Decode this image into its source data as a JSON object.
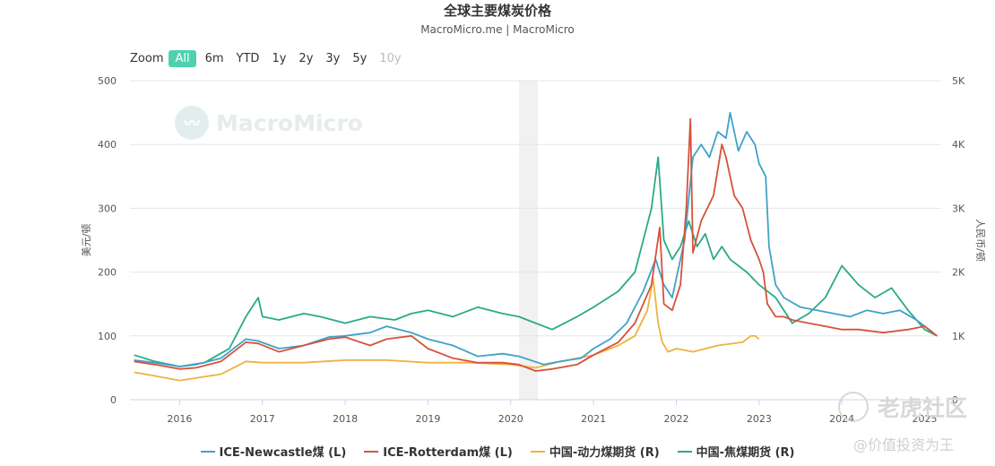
{
  "title": "全球主要煤炭价格",
  "subtitle": "MacroMicro.me | MacroMicro",
  "zoom": {
    "label": "Zoom",
    "buttons": [
      {
        "label": "All",
        "active": true,
        "disabled": false
      },
      {
        "label": "6m",
        "active": false,
        "disabled": false
      },
      {
        "label": "YTD",
        "active": false,
        "disabled": false
      },
      {
        "label": "1y",
        "active": false,
        "disabled": false
      },
      {
        "label": "2y",
        "active": false,
        "disabled": false
      },
      {
        "label": "3y",
        "active": false,
        "disabled": false
      },
      {
        "label": "5y",
        "active": false,
        "disabled": false
      },
      {
        "label": "10y",
        "active": false,
        "disabled": true
      }
    ]
  },
  "watermarks": {
    "brand": "MacroMicro",
    "tiger": "老虎社区",
    "handle": "@价值投资为王"
  },
  "chart_data": {
    "type": "line",
    "title": "全球主要煤炭价格",
    "subtitle": "MacroMicro.me | MacroMicro",
    "ylabel_left": "美元/顿",
    "ylabel_right": "人民币/顿",
    "ylim_left": [
      0,
      500
    ],
    "ylim_right": [
      0,
      5000
    ],
    "yticks_left": [
      "0",
      "100",
      "200",
      "300",
      "400",
      "500"
    ],
    "yticks_right": [
      "0",
      "1K",
      "2K",
      "3K",
      "4K",
      "5K"
    ],
    "xticks": [
      "2016",
      "2017",
      "2018",
      "2019",
      "2020",
      "2021",
      "2022",
      "2023",
      "2024",
      "2025"
    ],
    "xlim": [
      2015.4,
      2025.2
    ],
    "shaded_region": [
      2020.1,
      2020.33
    ],
    "grid": true,
    "legend_position": "bottom",
    "series": [
      {
        "name": "ICE-Newcastle煤 (L)",
        "axis": "left",
        "color": "#3fa2c8",
        "x": [
          2015.45,
          2015.7,
          2016.0,
          2016.2,
          2016.5,
          2016.8,
          2016.95,
          2017.2,
          2017.5,
          2017.8,
          2018.0,
          2018.3,
          2018.5,
          2018.8,
          2019.0,
          2019.3,
          2019.6,
          2019.9,
          2020.1,
          2020.4,
          2020.6,
          2020.85,
          2021.0,
          2021.2,
          2021.4,
          2021.6,
          2021.75,
          2021.85,
          2021.95,
          2022.1,
          2022.2,
          2022.3,
          2022.4,
          2022.5,
          2022.6,
          2022.65,
          2022.75,
          2022.85,
          2022.95,
          2023.0,
          2023.08,
          2023.12,
          2023.2,
          2023.3,
          2023.5,
          2023.7,
          2023.9,
          2024.1,
          2024.3,
          2024.5,
          2024.7,
          2024.9,
          2025.1
        ],
        "values": [
          62,
          58,
          52,
          55,
          65,
          95,
          92,
          80,
          85,
          98,
          100,
          105,
          115,
          105,
          95,
          85,
          68,
          72,
          68,
          55,
          60,
          65,
          80,
          95,
          120,
          170,
          220,
          180,
          160,
          250,
          380,
          400,
          380,
          420,
          410,
          450,
          390,
          420,
          400,
          370,
          350,
          240,
          180,
          160,
          145,
          140,
          135,
          130,
          140,
          135,
          140,
          125,
          105
        ]
      },
      {
        "name": "ICE-Rotterdam煤 (L)",
        "axis": "left",
        "color": "#d6523c",
        "x": [
          2015.45,
          2015.7,
          2016.0,
          2016.2,
          2016.5,
          2016.8,
          2016.95,
          2017.2,
          2017.5,
          2017.8,
          2018.0,
          2018.3,
          2018.5,
          2018.8,
          2019.0,
          2019.3,
          2019.6,
          2019.9,
          2020.1,
          2020.3,
          2020.5,
          2020.8,
          2021.0,
          2021.3,
          2021.5,
          2021.7,
          2021.8,
          2021.85,
          2021.95,
          2022.05,
          2022.12,
          2022.17,
          2022.2,
          2022.3,
          2022.45,
          2022.55,
          2022.6,
          2022.7,
          2022.8,
          2022.9,
          2023.0,
          2023.05,
          2023.1,
          2023.2,
          2023.3,
          2023.4,
          2023.6,
          2023.8,
          2024.0,
          2024.2,
          2024.5,
          2024.8,
          2025.0,
          2025.15
        ],
        "values": [
          60,
          55,
          48,
          50,
          60,
          90,
          88,
          75,
          85,
          95,
          98,
          85,
          95,
          100,
          80,
          65,
          58,
          58,
          55,
          45,
          48,
          55,
          70,
          90,
          120,
          180,
          270,
          150,
          140,
          180,
          300,
          440,
          230,
          280,
          320,
          400,
          380,
          320,
          300,
          250,
          220,
          200,
          150,
          130,
          130,
          125,
          120,
          115,
          110,
          110,
          105,
          110,
          115,
          100
        ]
      },
      {
        "name": "中国-动力煤期货 (R)",
        "axis": "right",
        "color": "#eeb23f",
        "x": [
          2015.45,
          2015.8,
          2016.0,
          2016.5,
          2016.8,
          2017.0,
          2017.5,
          2018.0,
          2018.5,
          2019.0,
          2019.5,
          2020.0,
          2020.3,
          2020.6,
          2021.0,
          2021.3,
          2021.5,
          2021.65,
          2021.72,
          2021.78,
          2021.83,
          2021.9,
          2022.0,
          2022.2,
          2022.5,
          2022.8,
          2022.9,
          2022.95,
          2023.0
        ],
        "values": [
          430,
          350,
          300,
          400,
          600,
          580,
          580,
          620,
          620,
          580,
          580,
          550,
          500,
          600,
          700,
          850,
          1000,
          1400,
          1900,
          1200,
          900,
          750,
          800,
          750,
          850,
          900,
          1000,
          1000,
          950
        ]
      },
      {
        "name": "中国-焦煤期货 (R)",
        "axis": "right",
        "color": "#2ba98a",
        "x": [
          2015.45,
          2015.7,
          2016.0,
          2016.3,
          2016.6,
          2016.8,
          2016.95,
          2017.0,
          2017.2,
          2017.5,
          2017.7,
          2018.0,
          2018.3,
          2018.6,
          2018.8,
          2019.0,
          2019.3,
          2019.6,
          2019.9,
          2020.1,
          2020.3,
          2020.5,
          2020.8,
          2021.0,
          2021.3,
          2021.5,
          2021.6,
          2021.7,
          2021.78,
          2021.85,
          2021.95,
          2022.05,
          2022.15,
          2022.25,
          2022.35,
          2022.45,
          2022.55,
          2022.65,
          2022.75,
          2022.85,
          2023.0,
          2023.2,
          2023.4,
          2023.6,
          2023.8,
          2024.0,
          2024.2,
          2024.4,
          2024.6,
          2024.8,
          2025.0,
          2025.15
        ],
        "values": [
          700,
          600,
          520,
          580,
          800,
          1300,
          1600,
          1300,
          1250,
          1350,
          1300,
          1200,
          1300,
          1250,
          1350,
          1400,
          1300,
          1450,
          1350,
          1300,
          1200,
          1100,
          1300,
          1450,
          1700,
          2000,
          2500,
          3000,
          3800,
          2500,
          2200,
          2400,
          2800,
          2400,
          2600,
          2200,
          2400,
          2200,
          2100,
          2000,
          1800,
          1600,
          1200,
          1350,
          1600,
          2100,
          1800,
          1600,
          1750,
          1400,
          1100,
          1000
        ]
      }
    ]
  }
}
